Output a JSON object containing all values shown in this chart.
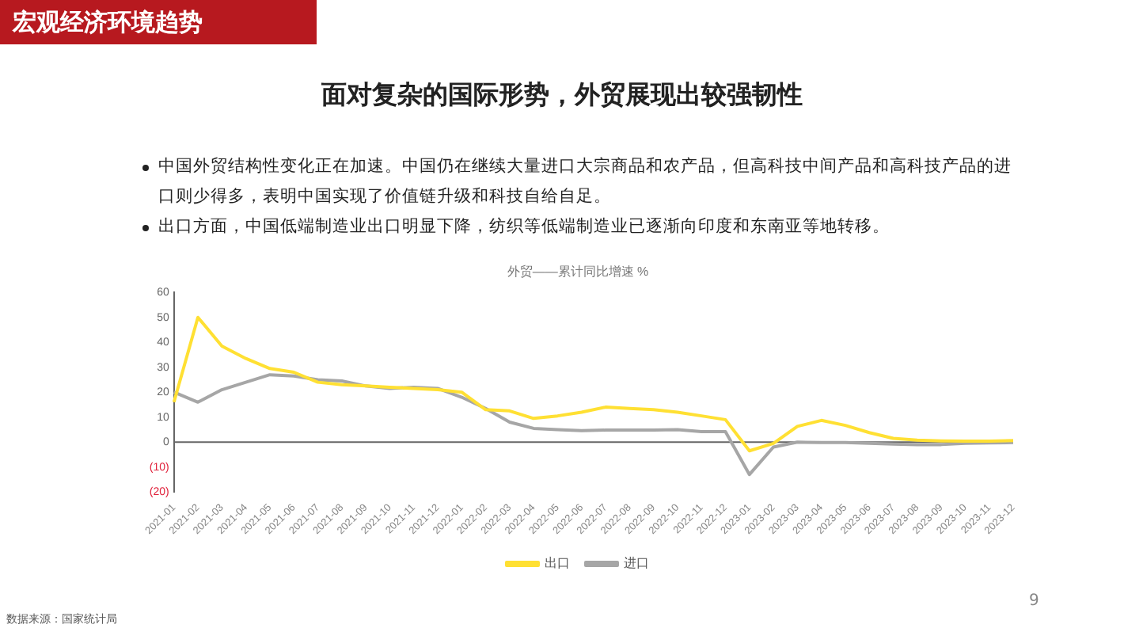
{
  "chart_data": {
    "type": "line",
    "title": "外贸——累计同比增速 %",
    "annotations": [
      "宏观经济环境趋势",
      "面对复杂的国际形势，外贸展现出较强韧性",
      "中国外贸结构性变化正在加速。中国仍在继续大量进口大宗商品和农产品，但高科技中间产品和高科技产品的进口则少得多，表明中国实现了价值链升级和科技自给自足。",
      "出口方面，中国低端制造业出口明显下降，纺织等低端制造业已逐渐向印度和东南亚等地转移。",
      "数据来源：国家统计局",
      "9"
    ],
    "categories": [
      "2021-01",
      "2021-02",
      "2021-03",
      "2021-04",
      "2021-05",
      "2021-06",
      "2021-07",
      "2021-08",
      "2021-09",
      "2021-10",
      "2021-11",
      "2021-12",
      "2022-01",
      "2022-02",
      "2022-03",
      "2022-04",
      "2022-05",
      "2022-06",
      "2022-07",
      "2022-08",
      "2022-09",
      "2022-10",
      "2022-11",
      "2022-12",
      "2023-01",
      "2023-02",
      "2023-03",
      "2023-04",
      "2023-05",
      "2023-06",
      "2023-07",
      "2023-08",
      "2023-09",
      "2023-10",
      "2023-11",
      "2023-12"
    ],
    "series": [
      {
        "name": "出口",
        "color": "#ffe033",
        "values": [
          16,
          50,
          38.5,
          33.5,
          29.5,
          28,
          24,
          23,
          22.5,
          22,
          21.5,
          21,
          20,
          13,
          12.5,
          9.5,
          10.5,
          12,
          14,
          13.5,
          13,
          12,
          10.5,
          9,
          -3.5,
          -0.5,
          6.3,
          8.7,
          6.7,
          3.8,
          1.5,
          0.8,
          0.5,
          0.4,
          0.4,
          0.6
        ]
      },
      {
        "name": "进口",
        "color": "#a6a6a6",
        "values": [
          20,
          16,
          21,
          24,
          27,
          26.5,
          25,
          24.5,
          22.5,
          21.5,
          22,
          21.5,
          18,
          13.5,
          8,
          5.5,
          5,
          4.6,
          4.8,
          4.8,
          4.8,
          5,
          4.2,
          4.2,
          -13,
          -2,
          0,
          -0.2,
          -0.2,
          -0.5,
          -0.8,
          -1,
          -1,
          -0.5,
          -0.3,
          -0.2
        ]
      }
    ],
    "ylim": [
      -20,
      60
    ],
    "yticks": [
      {
        "value": -20,
        "label": "(20)"
      },
      {
        "value": -10,
        "label": "(10)"
      },
      0,
      10,
      20,
      30,
      40,
      50,
      60
    ],
    "ref_lines": [
      {
        "axis": "y",
        "value": 0,
        "color": "#666666"
      }
    ],
    "grid": false,
    "legend": "bottom",
    "marker": "none",
    "line_style": "solid"
  }
}
